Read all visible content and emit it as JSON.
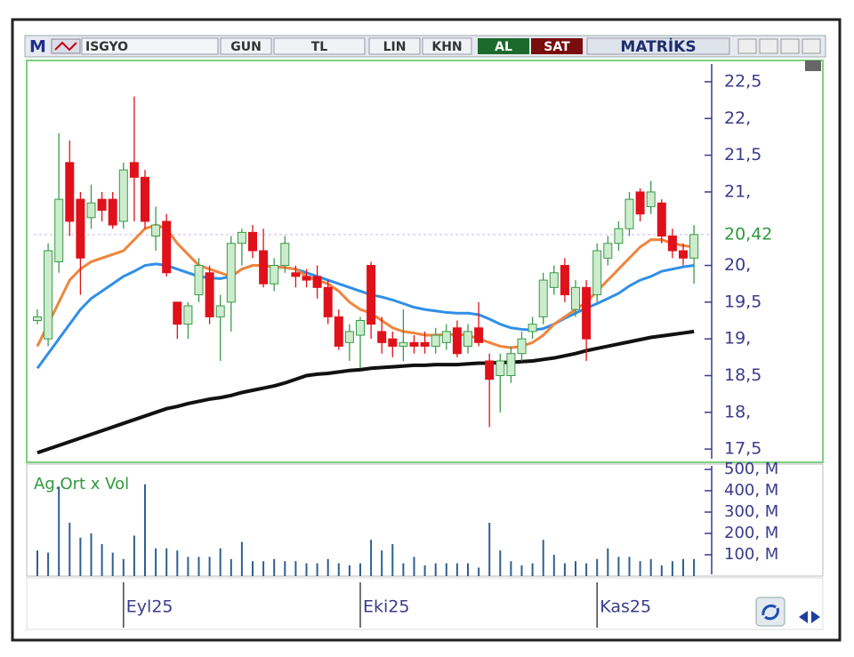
{
  "toolbar": {
    "mode": "M",
    "symbol": "ISGYO",
    "buttons": [
      "GUN",
      "TL",
      "LIN",
      "KHN"
    ],
    "buy": "AL",
    "sell": "SAT",
    "brand": "MATRİKS"
  },
  "chart_data": [
    {
      "type": "candlestick",
      "categories": [
        null,
        null,
        null,
        null,
        null,
        null,
        null,
        null,
        "Eyl25",
        null,
        null,
        null,
        null,
        null,
        null,
        null,
        null,
        null,
        null,
        null,
        null,
        null,
        null,
        null,
        null,
        null,
        null,
        null,
        null,
        null,
        "Eki25",
        null,
        null,
        null,
        null,
        null,
        null,
        null,
        null,
        null,
        null,
        null,
        null,
        null,
        null,
        null,
        null,
        null,
        null,
        null,
        null,
        null,
        "Kas25",
        null,
        null,
        null,
        null,
        null,
        null,
        null,
        null,
        null
      ],
      "open": [
        19.25,
        19.0,
        20.05,
        21.4,
        20.9,
        20.65,
        20.9,
        20.9,
        20.6,
        21.4,
        21.2,
        20.4,
        20.6,
        19.5,
        19.2,
        19.6,
        19.9,
        19.3,
        19.5,
        20.3,
        20.45,
        20.2,
        19.75,
        20.0,
        19.9,
        19.85,
        19.85,
        19.7,
        19.3,
        18.95,
        19.05,
        20.0,
        19.1,
        19.0,
        18.9,
        18.95,
        18.95,
        18.9,
        18.95,
        19.15,
        18.9,
        19.15,
        18.7,
        18.5,
        18.5,
        18.8,
        19.1,
        19.3,
        19.7,
        20.0,
        19.4,
        19.7,
        19.6,
        20.1,
        20.3,
        20.5,
        21.0,
        20.8,
        20.85,
        20.4,
        20.2,
        20.1
      ],
      "high": [
        19.4,
        20.3,
        21.8,
        21.7,
        21.0,
        21.1,
        21.0,
        21.0,
        21.4,
        22.3,
        21.3,
        20.8,
        20.7,
        19.5,
        19.5,
        20.1,
        20.0,
        19.6,
        20.4,
        20.5,
        20.55,
        20.5,
        20.1,
        20.4,
        20.0,
        19.95,
        20.0,
        19.8,
        19.4,
        19.2,
        19.3,
        20.05,
        19.3,
        19.1,
        19.4,
        19.05,
        19.1,
        19.15,
        19.2,
        19.25,
        19.2,
        19.5,
        18.8,
        18.8,
        18.9,
        19.1,
        19.3,
        19.9,
        20.0,
        20.1,
        19.8,
        19.8,
        20.3,
        20.4,
        20.6,
        21.0,
        21.05,
        21.15,
        20.9,
        20.5,
        20.3,
        20.55
      ],
      "low": [
        19.2,
        18.9,
        19.9,
        20.4,
        19.6,
        20.5,
        20.6,
        20.5,
        20.5,
        20.6,
        20.5,
        20.2,
        19.85,
        19.0,
        19.0,
        19.5,
        19.2,
        18.7,
        19.1,
        20.0,
        20.1,
        19.7,
        19.65,
        19.9,
        19.7,
        19.7,
        19.55,
        19.2,
        18.85,
        18.7,
        18.6,
        19.0,
        18.8,
        18.75,
        18.7,
        18.8,
        18.8,
        18.8,
        18.85,
        18.75,
        18.8,
        18.9,
        17.8,
        18.0,
        18.4,
        18.7,
        19.0,
        19.2,
        19.6,
        19.5,
        19.3,
        18.7,
        19.5,
        20.0,
        20.2,
        20.4,
        20.6,
        20.7,
        20.3,
        20.1,
        20.0,
        19.75
      ],
      "close": [
        19.3,
        20.2,
        20.9,
        20.6,
        20.1,
        20.85,
        20.75,
        20.55,
        21.3,
        21.2,
        20.6,
        20.55,
        19.9,
        19.2,
        19.45,
        20.0,
        19.3,
        19.45,
        20.3,
        20.45,
        20.2,
        19.75,
        20.0,
        20.3,
        19.85,
        19.8,
        19.7,
        19.3,
        18.9,
        19.1,
        19.25,
        19.2,
        18.95,
        18.9,
        18.95,
        18.9,
        18.9,
        19.05,
        19.1,
        18.8,
        19.1,
        18.95,
        18.45,
        18.7,
        18.8,
        19.0,
        19.2,
        19.8,
        19.9,
        19.6,
        19.7,
        19.0,
        20.2,
        20.3,
        20.5,
        20.9,
        20.7,
        21.0,
        20.4,
        20.2,
        20.1,
        20.42
      ],
      "up_color": "#3a9a48",
      "up_fill": "#cdeccd",
      "down_color": "#e0111b",
      "overlays": [
        {
          "color": "#111111",
          "values": [
            17.45,
            17.5,
            17.55,
            17.6,
            17.65,
            17.7,
            17.75,
            17.8,
            17.85,
            17.9,
            17.95,
            18.0,
            18.05,
            18.08,
            18.12,
            18.15,
            18.18,
            18.2,
            18.23,
            18.27,
            18.3,
            18.33,
            18.36,
            18.4,
            18.45,
            18.5,
            18.52,
            18.53,
            18.55,
            18.57,
            18.58,
            18.6,
            18.61,
            18.62,
            18.63,
            18.64,
            18.64,
            18.65,
            18.65,
            18.65,
            18.66,
            18.67,
            18.67,
            18.68,
            18.68,
            18.69,
            18.7,
            18.72,
            18.74,
            18.77,
            18.8,
            18.84,
            18.87,
            18.9,
            18.93,
            18.96,
            18.99,
            19.02,
            19.04,
            19.06,
            19.08,
            19.1
          ]
        },
        {
          "color": "#2f8fe8",
          "values": [
            18.6,
            18.8,
            19.0,
            19.2,
            19.4,
            19.55,
            19.65,
            19.75,
            19.85,
            19.92,
            20.0,
            20.02,
            20.0,
            19.95,
            19.9,
            19.85,
            19.83,
            19.82,
            19.85,
            19.95,
            20.0,
            20.0,
            19.98,
            19.97,
            19.95,
            19.9,
            19.85,
            19.8,
            19.75,
            19.7,
            19.65,
            19.6,
            19.57,
            19.53,
            19.48,
            19.43,
            19.4,
            19.38,
            19.36,
            19.35,
            19.35,
            19.33,
            19.27,
            19.2,
            19.15,
            19.13,
            19.12,
            19.14,
            19.2,
            19.28,
            19.35,
            19.42,
            19.48,
            19.55,
            19.62,
            19.72,
            19.8,
            19.85,
            19.92,
            19.95,
            19.98,
            20.0
          ]
        },
        {
          "color": "#f0843c",
          "values": [
            18.9,
            19.2,
            19.5,
            19.8,
            19.95,
            20.05,
            20.1,
            20.15,
            20.2,
            20.35,
            20.5,
            20.55,
            20.5,
            20.3,
            20.15,
            20.0,
            19.95,
            19.9,
            19.85,
            19.95,
            20.0,
            20.0,
            19.98,
            19.97,
            19.95,
            19.85,
            19.8,
            19.75,
            19.65,
            19.5,
            19.4,
            19.35,
            19.25,
            19.15,
            19.1,
            19.08,
            19.05,
            19.05,
            19.06,
            19.06,
            19.05,
            19.0,
            18.95,
            18.9,
            18.88,
            18.9,
            18.95,
            19.05,
            19.2,
            19.3,
            19.4,
            19.5,
            19.65,
            19.8,
            19.95,
            20.1,
            20.25,
            20.35,
            20.35,
            20.3,
            20.27,
            20.25
          ]
        }
      ],
      "last_value": 20.42,
      "last_label": "20,42",
      "last_color": "#2e9a3a",
      "ylim": [
        17.32,
        22.79
      ],
      "yticks": [
        {
          "value": 17.5,
          "label": "17,5"
        },
        {
          "value": 18,
          "label": "18,"
        },
        {
          "value": 18.5,
          "label": "18,5"
        },
        {
          "value": 19,
          "label": "19,"
        },
        {
          "value": 19.5,
          "label": "19,5"
        },
        {
          "value": 20,
          "label": "20,"
        },
        {
          "value": 21,
          "label": "21,"
        },
        {
          "value": 21.5,
          "label": "21,5"
        },
        {
          "value": 22,
          "label": "22,"
        },
        {
          "value": 22.5,
          "label": "22,5"
        }
      ]
    },
    {
      "type": "bar",
      "title": "Ag.Ort x Vol",
      "color": "#2f5f8f",
      "values": [
        120,
        110,
        420,
        250,
        180,
        200,
        150,
        110,
        80,
        190,
        430,
        130,
        130,
        120,
        90,
        90,
        90,
        130,
        80,
        160,
        70,
        70,
        80,
        70,
        70,
        60,
        60,
        80,
        60,
        50,
        60,
        170,
        120,
        150,
        60,
        90,
        50,
        60,
        60,
        60,
        60,
        40,
        250,
        120,
        70,
        50,
        60,
        170,
        100,
        60,
        70,
        60,
        80,
        130,
        90,
        90,
        70,
        80,
        50,
        70,
        80,
        80
      ],
      "ylim": [
        0,
        525
      ],
      "yticks": [
        {
          "value": 100,
          "label": "100, M"
        },
        {
          "value": 200,
          "label": "200, M"
        },
        {
          "value": 300,
          "label": "300, M"
        },
        {
          "value": 400,
          "label": "400, M"
        },
        {
          "value": 500,
          "label": "500, M"
        }
      ]
    }
  ]
}
